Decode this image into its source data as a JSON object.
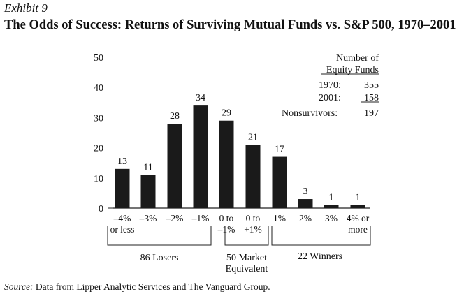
{
  "exhibit": "Exhibit 9",
  "title": "The Odds of Success: Returns of Surviving Mutual Funds vs. S&P 500, 1970–2001",
  "source": {
    "label": "Source:",
    "text": "Data from Lipper Analytic Services and The Vanguard Group."
  },
  "legend_box": {
    "header_line1": "Number of",
    "header_line2": "Equity Funds",
    "rows": [
      {
        "label": "1970:",
        "value": "355"
      },
      {
        "label": "2001:",
        "value": "158"
      },
      {
        "label": "Nonsurvivors:",
        "value": "197"
      }
    ]
  },
  "groups": [
    {
      "line1": "86 Losers",
      "line2": ""
    },
    {
      "line1": "50 Market",
      "line2": "Equivalent"
    },
    {
      "line1": "22 Winners",
      "line2": ""
    }
  ],
  "chart_data": {
    "type": "bar",
    "categories": [
      [
        "–4%",
        "or less"
      ],
      [
        "–3%",
        ""
      ],
      [
        "–2%",
        ""
      ],
      [
        "–1%",
        ""
      ],
      [
        "0 to",
        "–1%"
      ],
      [
        "0 to",
        "+1%"
      ],
      [
        "1%",
        ""
      ],
      [
        "2%",
        ""
      ],
      [
        "3%",
        ""
      ],
      [
        "4% or",
        "more"
      ]
    ],
    "values": [
      13,
      11,
      28,
      34,
      29,
      21,
      17,
      3,
      1,
      1
    ],
    "ylim": [
      0,
      50
    ],
    "yticks": [
      0,
      10,
      20,
      30,
      40,
      50
    ],
    "bar_color": "#1a1a1a",
    "grid": false
  }
}
